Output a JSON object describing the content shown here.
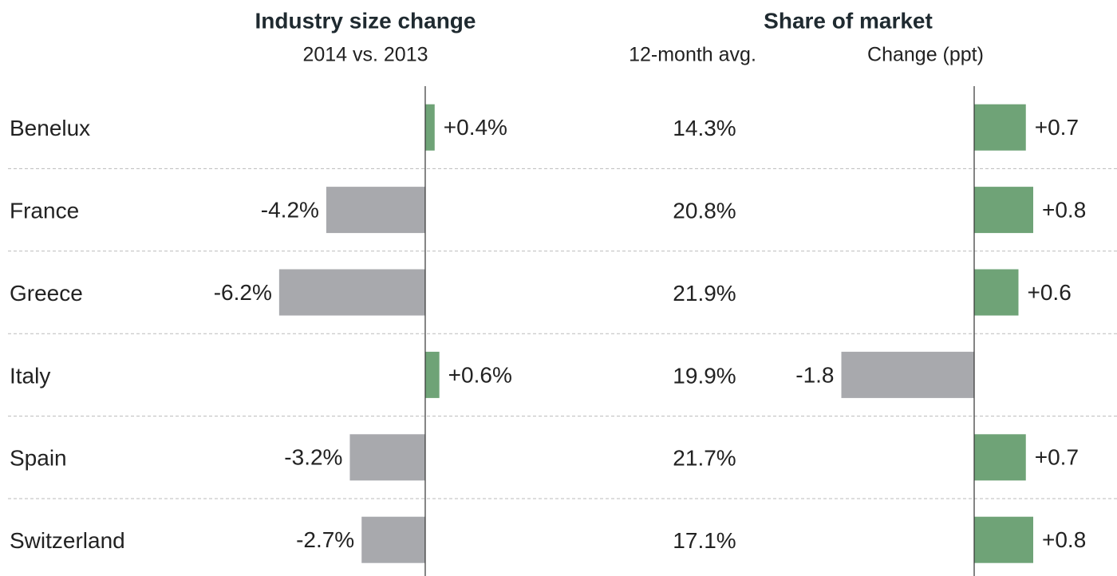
{
  "categories": [
    "Benelux",
    "France",
    "Greece",
    "Italy",
    "Spain",
    "Switzerland"
  ],
  "chart_data": [
    {
      "type": "bar",
      "orientation": "horizontal",
      "title": "Industry size change",
      "subtitle": "2014 vs. 2013",
      "values": [
        0.4,
        -4.2,
        -6.2,
        0.6,
        -3.2,
        -2.7
      ],
      "value_labels": [
        "+0.4%",
        "-4.2%",
        "-6.2%",
        "+0.6%",
        "-3.2%",
        "-2.7%"
      ],
      "xlim": [
        -6.5,
        1
      ],
      "colors": {
        "positive": "#6fa377",
        "negative": "#a8a9ad"
      }
    },
    {
      "type": "bar",
      "orientation": "horizontal",
      "title": "Share of market",
      "column_label": "12-month avg.",
      "column_values": [
        14.3,
        20.8,
        21.9,
        19.9,
        21.7,
        17.1
      ],
      "column_value_labels": [
        "14.3%",
        "20.8%",
        "21.9%",
        "19.9%",
        "21.7%",
        "17.1%"
      ],
      "subtitle": "Change (ppt)",
      "values": [
        0.7,
        0.8,
        0.6,
        -1.8,
        0.7,
        0.8
      ],
      "value_labels": [
        "+0.7",
        "+0.8",
        "+0.6",
        "-1.8",
        "+0.7",
        "+0.8"
      ],
      "xlim": [
        -2,
        1
      ],
      "colors": {
        "positive": "#6fa377",
        "negative": "#a8a9ad"
      }
    }
  ]
}
